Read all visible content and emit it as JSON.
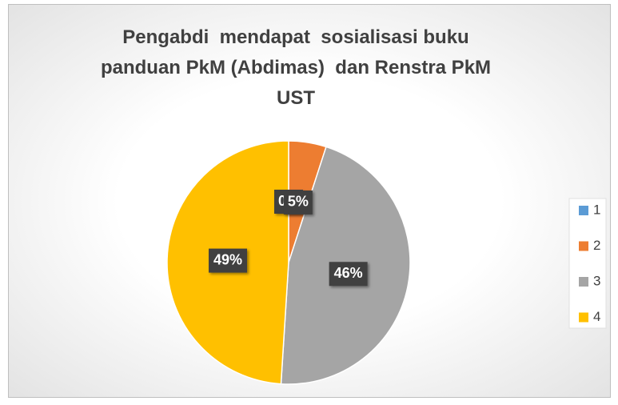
{
  "chart_data": {
    "type": "pie",
    "title": "Pengabdi  mendapat  sosialisasi buku panduan PkM (Abdimas)  dan Renstra PkM UST",
    "categories": [
      "1",
      "2",
      "3",
      "4"
    ],
    "values": [
      0,
      5,
      46,
      49
    ],
    "value_labels": [
      "0%",
      "5%",
      "46%",
      "49%"
    ],
    "colors": [
      "#5b9bd5",
      "#ed7d31",
      "#a5a5a5",
      "#ffc000"
    ],
    "legend": "right"
  }
}
